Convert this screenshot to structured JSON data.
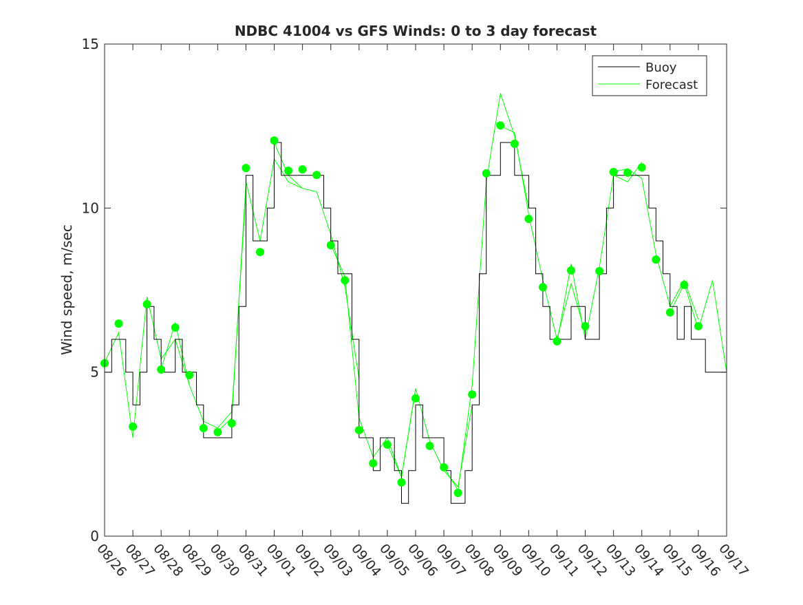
{
  "chart_data": {
    "type": "line",
    "title": "NDBC 41004 vs GFS Winds: 0 to 3 day forecast",
    "xlabel": "",
    "ylabel": "Wind speed, m/sec",
    "xlim": [
      0,
      22
    ],
    "ylim": [
      0,
      15
    ],
    "yticks": [
      0,
      5,
      10,
      15
    ],
    "xtick_labels": [
      "08/26",
      "08/27",
      "08/28",
      "08/29",
      "08/30",
      "08/31",
      "09/01",
      "09/02",
      "09/03",
      "09/04",
      "09/05",
      "09/06",
      "09/07",
      "09/08",
      "09/09",
      "09/10",
      "09/11",
      "09/12",
      "09/13",
      "09/14",
      "09/15",
      "09/16",
      "09/17"
    ],
    "x_units": "days since 08/26",
    "legend": {
      "placement": "top-right",
      "entries": [
        "Buoy",
        "Forecast"
      ]
    },
    "colors": {
      "buoy": "#000000",
      "forecast": "#00ff00"
    },
    "buoy": {
      "name": "Buoy",
      "step_days": 0.25,
      "values": [
        5,
        6,
        6,
        5,
        4,
        5,
        7,
        6,
        5,
        5,
        6,
        5,
        5,
        4,
        3,
        3,
        3,
        3,
        4,
        7,
        11,
        9,
        9,
        10,
        12,
        11,
        11,
        11,
        11,
        11,
        11,
        10,
        9,
        8,
        8,
        6,
        3,
        3,
        2,
        3,
        3,
        2,
        1,
        2,
        4,
        3,
        3,
        3,
        2,
        1,
        1,
        2,
        4,
        8,
        11,
        11,
        12,
        12,
        11,
        11,
        10,
        8,
        7,
        6,
        6,
        6,
        7,
        7,
        6,
        6,
        8,
        10,
        11,
        11,
        11,
        11,
        11,
        10,
        9,
        8,
        7,
        6,
        7,
        6,
        6,
        5,
        5,
        5,
        5
      ]
    },
    "forecast_runs": [
      {
        "start": 0,
        "step_days": 0.5,
        "values": [
          5.3,
          6.2,
          3.0,
          7.3,
          5.4,
          6.0,
          4.6
        ]
      },
      {
        "start": 2,
        "step_days": 0.5,
        "values": [
          5.1,
          6.5,
          4.6,
          3.5,
          3.3,
          3.8,
          10.5
        ]
      },
      {
        "start": 4,
        "step_days": 0.5,
        "values": [
          3.2,
          3.6,
          10.8,
          9.0,
          11.5,
          10.8,
          10.6
        ]
      },
      {
        "start": 6,
        "step_days": 0.5,
        "values": [
          12.0,
          11.0,
          10.6,
          10.5,
          9.2,
          7.6,
          4.8
        ]
      },
      {
        "start": 8,
        "step_days": 0.5,
        "values": [
          8.9,
          7.9,
          3.6,
          2.4,
          3.0,
          1.8,
          4.5
        ]
      },
      {
        "start": 10,
        "step_days": 0.5,
        "values": [
          2.8,
          1.8,
          4.5,
          2.9,
          2.0,
          1.5,
          4.0
        ]
      },
      {
        "start": 12,
        "step_days": 0.5,
        "values": [
          2.1,
          1.4,
          4.6,
          10.8,
          13.5,
          12.2,
          10.0
        ]
      },
      {
        "start": 14,
        "step_days": 0.5,
        "values": [
          12.5,
          12.3,
          9.8,
          7.8,
          6.0,
          7.7,
          6.2
        ]
      },
      {
        "start": 16,
        "step_days": 0.5,
        "values": [
          5.9,
          8.3,
          6.0,
          8.2,
          11.0,
          10.8,
          11.4
        ]
      },
      {
        "start": 18,
        "step_days": 0.5,
        "values": [
          11.1,
          11.2,
          10.9,
          8.6,
          7.0,
          7.8,
          6.6
        ]
      },
      {
        "start": 20,
        "step_days": 0.5,
        "values": [
          6.8,
          7.7,
          6.3,
          7.8,
          5.0
        ]
      }
    ],
    "analysis_points": {
      "step_days": 0.5,
      "values": [
        5.27,
        6.48,
        3.34,
        7.07,
        5.08,
        6.36,
        4.91,
        3.29,
        3.17,
        3.44,
        11.22,
        8.66,
        12.06,
        11.14,
        11.18,
        11.01,
        8.87,
        7.8,
        3.23,
        2.22,
        2.79,
        1.64,
        4.2,
        2.75,
        2.1,
        1.32,
        4.32,
        11.06,
        12.52,
        11.96,
        9.67,
        7.59,
        5.94,
        8.1,
        6.4,
        8.08,
        11.1,
        11.08,
        11.24,
        8.43,
        6.82,
        7.66,
        6.4
      ]
    }
  }
}
